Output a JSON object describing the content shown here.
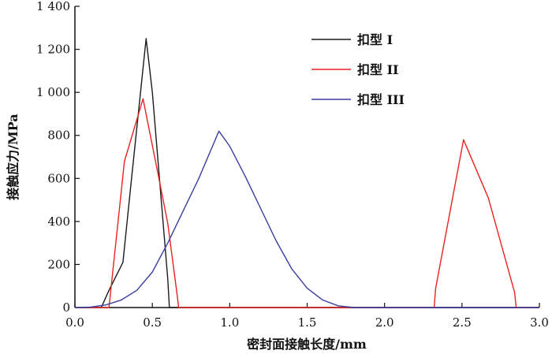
{
  "chart_data": {
    "type": "line",
    "xlabel": "密封面接触长度/mm",
    "ylabel": "接触应力/MPa",
    "xlim": [
      0,
      3.0
    ],
    "ylim": [
      0,
      1400
    ],
    "x_ticks": [
      "0.0",
      "0.5",
      "1.0",
      "1.5",
      "2.0",
      "2.5",
      "3.0"
    ],
    "y_ticks": [
      "0",
      "200",
      "400",
      "600",
      "800",
      "1 000",
      "1 200",
      "1 400"
    ],
    "grid": false,
    "legend_position": "top-right",
    "series": [
      {
        "name": "扣型 I",
        "color": "#1a1a1a",
        "points": [
          [
            0.0,
            0
          ],
          [
            0.17,
            0
          ],
          [
            0.22,
            80
          ],
          [
            0.31,
            210
          ],
          [
            0.36,
            560
          ],
          [
            0.46,
            1250
          ],
          [
            0.5,
            1000
          ],
          [
            0.56,
            480
          ],
          [
            0.6,
            130
          ],
          [
            0.61,
            0
          ],
          [
            3.0,
            0
          ]
        ]
      },
      {
        "name": "扣型 II",
        "color": "#e8231f",
        "points": [
          [
            0.0,
            0
          ],
          [
            0.22,
            0
          ],
          [
            0.32,
            680
          ],
          [
            0.44,
            970
          ],
          [
            0.54,
            610
          ],
          [
            0.6,
            390
          ],
          [
            0.66,
            60
          ],
          [
            0.67,
            0
          ],
          [
            2.32,
            0
          ],
          [
            2.33,
            90
          ],
          [
            2.51,
            780
          ],
          [
            2.67,
            510
          ],
          [
            2.84,
            70
          ],
          [
            2.85,
            0
          ],
          [
            3.0,
            0
          ]
        ]
      },
      {
        "name": "扣型 III",
        "color": "#3a3fa0",
        "points": [
          [
            0.0,
            0
          ],
          [
            0.1,
            2
          ],
          [
            0.2,
            12
          ],
          [
            0.3,
            35
          ],
          [
            0.4,
            80
          ],
          [
            0.5,
            165
          ],
          [
            0.6,
            300
          ],
          [
            0.7,
            450
          ],
          [
            0.8,
            600
          ],
          [
            0.93,
            820
          ],
          [
            1.0,
            750
          ],
          [
            1.1,
            610
          ],
          [
            1.2,
            460
          ],
          [
            1.3,
            310
          ],
          [
            1.4,
            180
          ],
          [
            1.5,
            90
          ],
          [
            1.6,
            35
          ],
          [
            1.7,
            8
          ],
          [
            1.8,
            0
          ],
          [
            3.0,
            0
          ]
        ]
      }
    ]
  }
}
